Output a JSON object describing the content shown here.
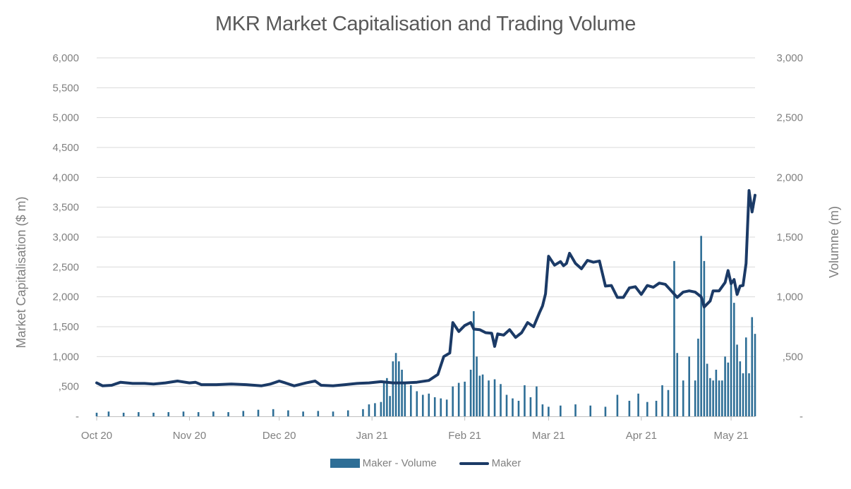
{
  "chart_data": {
    "type": "bar+line",
    "title": "MKR Market Capitalisation and Trading Volume",
    "ylabel_left": "Market Capitalisation ($ m)",
    "ylabel_right": "Volumne (m)",
    "ylim_left": [
      0,
      6000
    ],
    "ylim_right": [
      0,
      3000
    ],
    "yticks_left": [
      "-",
      ",500",
      "1,000",
      "1,500",
      "2,000",
      "2,500",
      "3,000",
      "3,500",
      "4,000",
      "4,500",
      "5,000",
      "5,500",
      "6,000"
    ],
    "yticks_right": [
      "-",
      ",500",
      "1,000",
      "1,500",
      "2,000",
      "2,500",
      "3,000"
    ],
    "x_start": "2020-10-01",
    "x_end": "2021-05-09",
    "xticks": [
      {
        "label": "Oct 20",
        "date": "2020-10-01"
      },
      {
        "label": "Nov 20",
        "date": "2020-11-01"
      },
      {
        "label": "Dec 20",
        "date": "2020-12-01"
      },
      {
        "label": "Jan 21",
        "date": "2021-01-01"
      },
      {
        "label": "Feb 21",
        "date": "2021-02-01"
      },
      {
        "label": "Mar 21",
        "date": "2021-03-01"
      },
      {
        "label": "Apr 21",
        "date": "2021-04-01"
      },
      {
        "label": "May 21",
        "date": "2021-05-01"
      }
    ],
    "grid": true,
    "legend_position": "bottom",
    "colors": {
      "volume": "#2e6e96",
      "mcap": "#1b3a66",
      "grid": "#d9d9d9",
      "axis": "#bfbfbf"
    },
    "series": [
      {
        "name": "Maker - Volume",
        "type": "bar",
        "axis": "right",
        "points": [
          [
            "2020-10-01",
            30
          ],
          [
            "2020-10-05",
            40
          ],
          [
            "2020-10-10",
            30
          ],
          [
            "2020-10-15",
            35
          ],
          [
            "2020-10-20",
            30
          ],
          [
            "2020-10-25",
            35
          ],
          [
            "2020-10-30",
            40
          ],
          [
            "2020-11-04",
            35
          ],
          [
            "2020-11-09",
            40
          ],
          [
            "2020-11-14",
            35
          ],
          [
            "2020-11-19",
            45
          ],
          [
            "2020-11-24",
            55
          ],
          [
            "2020-11-29",
            60
          ],
          [
            "2020-12-04",
            50
          ],
          [
            "2020-12-09",
            40
          ],
          [
            "2020-12-14",
            45
          ],
          [
            "2020-12-19",
            40
          ],
          [
            "2020-12-24",
            50
          ],
          [
            "2020-12-29",
            60
          ],
          [
            "2020-12-31",
            100
          ],
          [
            "2021-01-02",
            110
          ],
          [
            "2021-01-04",
            120
          ],
          [
            "2021-01-05",
            280
          ],
          [
            "2021-01-06",
            320
          ],
          [
            "2021-01-07",
            170
          ],
          [
            "2021-01-08",
            460
          ],
          [
            "2021-01-09",
            530
          ],
          [
            "2021-01-10",
            460
          ],
          [
            "2021-01-11",
            390
          ],
          [
            "2021-01-12",
            270
          ],
          [
            "2021-01-14",
            260
          ],
          [
            "2021-01-16",
            210
          ],
          [
            "2021-01-18",
            180
          ],
          [
            "2021-01-20",
            190
          ],
          [
            "2021-01-22",
            160
          ],
          [
            "2021-01-24",
            150
          ],
          [
            "2021-01-26",
            140
          ],
          [
            "2021-01-28",
            250
          ],
          [
            "2021-01-30",
            280
          ],
          [
            "2021-02-01",
            290
          ],
          [
            "2021-02-03",
            390
          ],
          [
            "2021-02-04",
            880
          ],
          [
            "2021-02-05",
            500
          ],
          [
            "2021-02-06",
            340
          ],
          [
            "2021-02-07",
            350
          ],
          [
            "2021-02-09",
            300
          ],
          [
            "2021-02-11",
            310
          ],
          [
            "2021-02-13",
            270
          ],
          [
            "2021-02-15",
            180
          ],
          [
            "2021-02-17",
            150
          ],
          [
            "2021-02-19",
            130
          ],
          [
            "2021-02-21",
            260
          ],
          [
            "2021-02-23",
            160
          ],
          [
            "2021-02-25",
            250
          ],
          [
            "2021-02-27",
            100
          ],
          [
            "2021-03-01",
            80
          ],
          [
            "2021-03-05",
            90
          ],
          [
            "2021-03-10",
            100
          ],
          [
            "2021-03-15",
            90
          ],
          [
            "2021-03-20",
            80
          ],
          [
            "2021-03-24",
            180
          ],
          [
            "2021-03-28",
            130
          ],
          [
            "2021-03-31",
            190
          ],
          [
            "2021-04-03",
            120
          ],
          [
            "2021-04-06",
            130
          ],
          [
            "2021-04-08",
            260
          ],
          [
            "2021-04-10",
            220
          ],
          [
            "2021-04-12",
            1300
          ],
          [
            "2021-04-13",
            530
          ],
          [
            "2021-04-15",
            300
          ],
          [
            "2021-04-17",
            500
          ],
          [
            "2021-04-19",
            300
          ],
          [
            "2021-04-20",
            650
          ],
          [
            "2021-04-21",
            1510
          ],
          [
            "2021-04-22",
            1300
          ],
          [
            "2021-04-23",
            440
          ],
          [
            "2021-04-24",
            320
          ],
          [
            "2021-04-25",
            300
          ],
          [
            "2021-04-26",
            390
          ],
          [
            "2021-04-27",
            300
          ],
          [
            "2021-04-28",
            300
          ],
          [
            "2021-04-29",
            500
          ],
          [
            "2021-04-30",
            450
          ],
          [
            "2021-05-01",
            1140
          ],
          [
            "2021-05-02",
            950
          ],
          [
            "2021-05-03",
            600
          ],
          [
            "2021-05-04",
            460
          ],
          [
            "2021-05-05",
            360
          ],
          [
            "2021-05-06",
            660
          ],
          [
            "2021-05-07",
            360
          ],
          [
            "2021-05-08",
            830
          ],
          [
            "2021-05-09",
            690
          ]
        ]
      },
      {
        "name": "Maker",
        "type": "line",
        "axis": "left",
        "points": [
          [
            "2020-10-01",
            560
          ],
          [
            "2020-10-03",
            510
          ],
          [
            "2020-10-06",
            520
          ],
          [
            "2020-10-09",
            570
          ],
          [
            "2020-10-13",
            550
          ],
          [
            "2020-10-17",
            550
          ],
          [
            "2020-10-20",
            540
          ],
          [
            "2020-10-24",
            560
          ],
          [
            "2020-10-28",
            590
          ],
          [
            "2020-11-01",
            560
          ],
          [
            "2020-11-03",
            570
          ],
          [
            "2020-11-05",
            530
          ],
          [
            "2020-11-10",
            530
          ],
          [
            "2020-11-15",
            540
          ],
          [
            "2020-11-20",
            530
          ],
          [
            "2020-11-25",
            510
          ],
          [
            "2020-11-28",
            540
          ],
          [
            "2020-12-01",
            590
          ],
          [
            "2020-12-03",
            560
          ],
          [
            "2020-12-06",
            510
          ],
          [
            "2020-12-10",
            560
          ],
          [
            "2020-12-13",
            590
          ],
          [
            "2020-12-15",
            520
          ],
          [
            "2020-12-19",
            510
          ],
          [
            "2020-12-23",
            530
          ],
          [
            "2020-12-27",
            550
          ],
          [
            "2020-12-31",
            560
          ],
          [
            "2021-01-04",
            580
          ],
          [
            "2021-01-08",
            560
          ],
          [
            "2021-01-12",
            560
          ],
          [
            "2021-01-16",
            570
          ],
          [
            "2021-01-20",
            600
          ],
          [
            "2021-01-23",
            700
          ],
          [
            "2021-01-25",
            1000
          ],
          [
            "2021-01-27",
            1060
          ],
          [
            "2021-01-28",
            1570
          ],
          [
            "2021-01-30",
            1420
          ],
          [
            "2021-02-01",
            1520
          ],
          [
            "2021-02-03",
            1570
          ],
          [
            "2021-02-04",
            1460
          ],
          [
            "2021-02-06",
            1450
          ],
          [
            "2021-02-08",
            1400
          ],
          [
            "2021-02-10",
            1390
          ],
          [
            "2021-02-11",
            1170
          ],
          [
            "2021-02-12",
            1380
          ],
          [
            "2021-02-14",
            1360
          ],
          [
            "2021-02-16",
            1450
          ],
          [
            "2021-02-18",
            1320
          ],
          [
            "2021-02-20",
            1400
          ],
          [
            "2021-02-22",
            1570
          ],
          [
            "2021-02-24",
            1500
          ],
          [
            "2021-02-26",
            1740
          ],
          [
            "2021-02-27",
            1850
          ],
          [
            "2021-02-28",
            2050
          ],
          [
            "2021-03-01",
            2680
          ],
          [
            "2021-03-03",
            2530
          ],
          [
            "2021-03-05",
            2590
          ],
          [
            "2021-03-06",
            2520
          ],
          [
            "2021-03-07",
            2560
          ],
          [
            "2021-03-08",
            2730
          ],
          [
            "2021-03-10",
            2560
          ],
          [
            "2021-03-12",
            2470
          ],
          [
            "2021-03-14",
            2610
          ],
          [
            "2021-03-16",
            2580
          ],
          [
            "2021-03-18",
            2600
          ],
          [
            "2021-03-20",
            2180
          ],
          [
            "2021-03-22",
            2190
          ],
          [
            "2021-03-24",
            1990
          ],
          [
            "2021-03-26",
            1990
          ],
          [
            "2021-03-28",
            2150
          ],
          [
            "2021-03-30",
            2170
          ],
          [
            "2021-04-01",
            2040
          ],
          [
            "2021-04-03",
            2190
          ],
          [
            "2021-04-05",
            2160
          ],
          [
            "2021-04-07",
            2230
          ],
          [
            "2021-04-09",
            2210
          ],
          [
            "2021-04-11",
            2100
          ],
          [
            "2021-04-13",
            1990
          ],
          [
            "2021-04-15",
            2080
          ],
          [
            "2021-04-17",
            2100
          ],
          [
            "2021-04-19",
            2080
          ],
          [
            "2021-04-21",
            2000
          ],
          [
            "2021-04-22",
            1830
          ],
          [
            "2021-04-24",
            1930
          ],
          [
            "2021-04-25",
            2100
          ],
          [
            "2021-04-27",
            2100
          ],
          [
            "2021-04-29",
            2240
          ],
          [
            "2021-04-30",
            2440
          ],
          [
            "2021-05-01",
            2220
          ],
          [
            "2021-05-02",
            2290
          ],
          [
            "2021-05-03",
            2040
          ],
          [
            "2021-05-04",
            2180
          ],
          [
            "2021-05-05",
            2190
          ],
          [
            "2021-05-06",
            2560
          ],
          [
            "2021-05-07",
            3780
          ],
          [
            "2021-05-08",
            3420
          ],
          [
            "2021-05-09",
            3700
          ]
        ]
      }
    ]
  },
  "legend": [
    {
      "label": "Maker - Volume",
      "kind": "bar"
    },
    {
      "label": "Maker",
      "kind": "line"
    }
  ]
}
